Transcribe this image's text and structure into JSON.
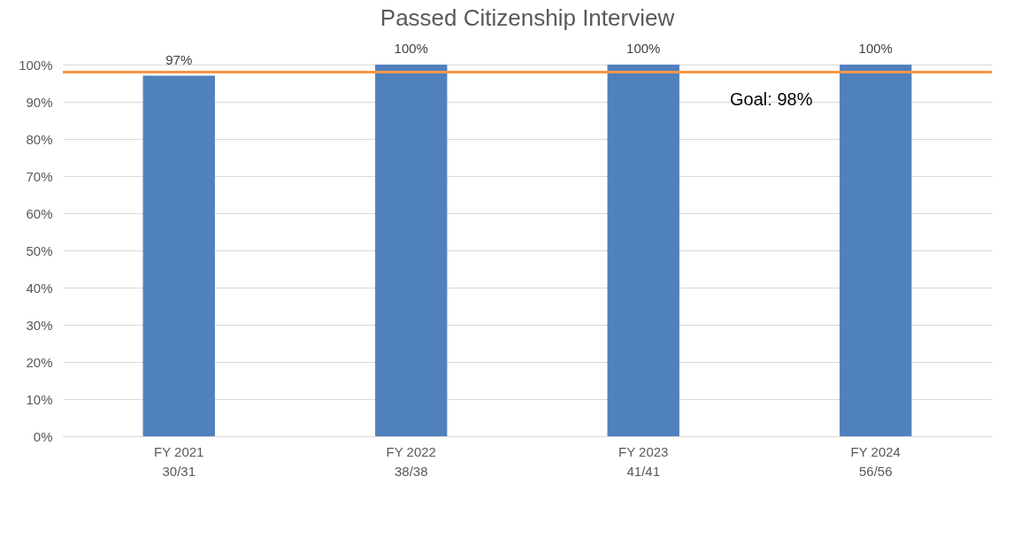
{
  "chart_data": {
    "type": "bar",
    "title": "Passed Citizenship Interview",
    "categories": [
      "FY 2021\n30/31",
      "FY 2022\n38/38",
      "FY 2023\n41/41",
      "FY 2024\n56/56"
    ],
    "values": [
      97,
      100,
      100,
      100
    ],
    "color": "#4f81bd",
    "value_labels": [
      "97%",
      "100%",
      "100%",
      "100%"
    ],
    "ylim": [
      0,
      100
    ],
    "yticks": [
      {
        "value": 0,
        "label": "0%"
      },
      {
        "value": 10,
        "label": "10%"
      },
      {
        "value": 20,
        "label": "20%"
      },
      {
        "value": 30,
        "label": "30%"
      },
      {
        "value": 40,
        "label": "40%"
      },
      {
        "value": 50,
        "label": "50%"
      },
      {
        "value": 60,
        "label": "60%"
      },
      {
        "value": 70,
        "label": "70%"
      },
      {
        "value": 80,
        "label": "80%"
      },
      {
        "value": 90,
        "label": "90%"
      },
      {
        "value": 100,
        "label": "100%"
      }
    ],
    "grid": "y",
    "ref_lines": [
      {
        "axis": "y",
        "value": 98,
        "label": "Goal:  98%",
        "color": "#f79646"
      }
    ]
  }
}
